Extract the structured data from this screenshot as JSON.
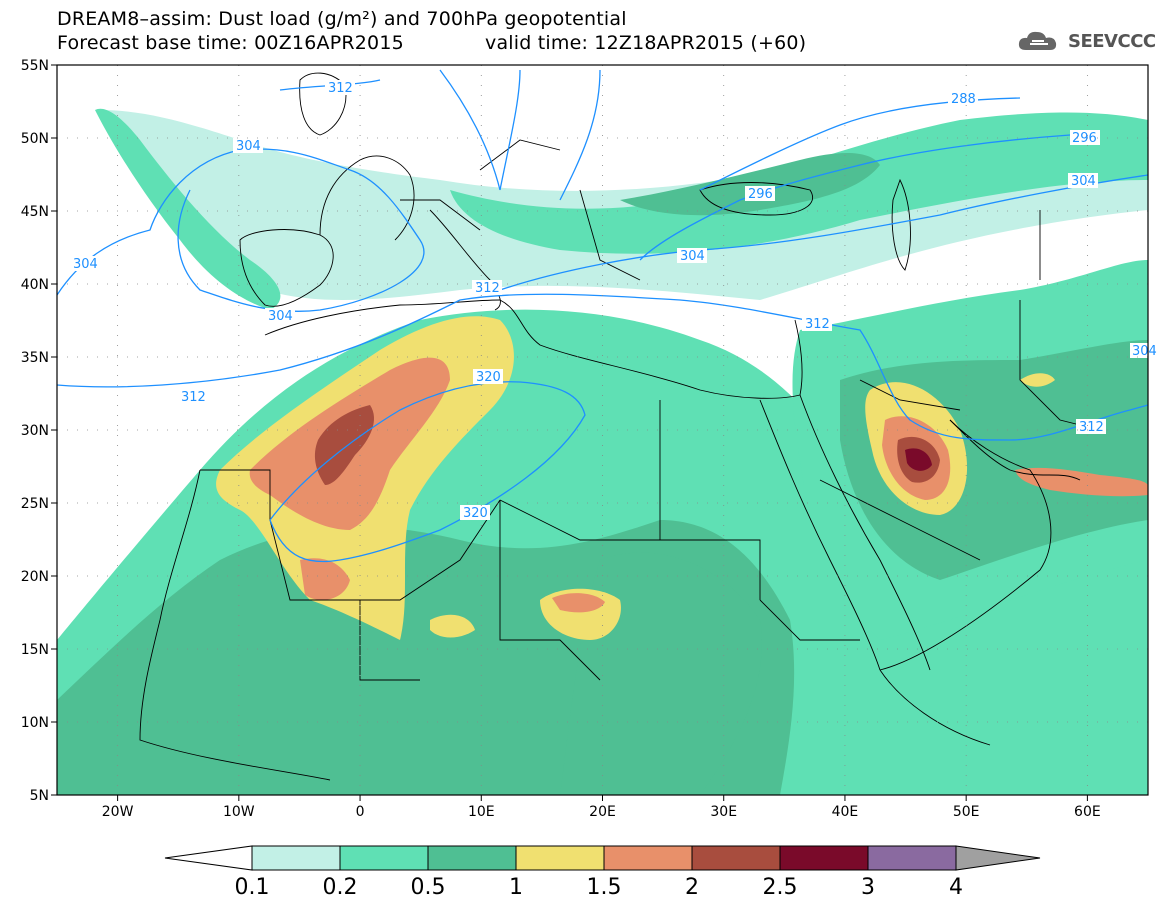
{
  "title_line1": "DREAM8–assim: Dust load (g/m²) and 700hPa geopotential",
  "title_line2": "Forecast base time: 00Z16APR2015",
  "valid_time": "valid time: 12Z18APR2015 (+60)",
  "logo_text": "SEEVCCC",
  "colors": {
    "c01": "#c2f0e6",
    "c02": "#5fe0b4",
    "c05": "#4fbf93",
    "c1": "#f0e070",
    "c15": "#e8906a",
    "c2": "#a84d3e",
    "c25": "#7a0a2a",
    "c3": "#8a6aa0",
    "c4": "#a0a0a0",
    "contour": "#1e90ff",
    "border": "#000000"
  },
  "chart_data": {
    "type": "heatmap",
    "map_extent": {
      "lon": [
        -25,
        65
      ],
      "lat": [
        5,
        55
      ]
    },
    "x_ticks": [
      "20W",
      "10W",
      "0",
      "10E",
      "20E",
      "30E",
      "40E",
      "50E",
      "60E"
    ],
    "x_tick_values": [
      -20,
      -10,
      0,
      10,
      20,
      30,
      40,
      50,
      60
    ],
    "y_ticks": [
      "55N",
      "50N",
      "45N",
      "40N",
      "35N",
      "30N",
      "25N",
      "20N",
      "15N",
      "10N",
      "5N"
    ],
    "y_tick_values": [
      55,
      50,
      45,
      40,
      35,
      30,
      25,
      20,
      15,
      10,
      5
    ],
    "colorbar_levels": [
      "0.1",
      "0.2",
      "0.5",
      "1",
      "1.5",
      "2",
      "2.5",
      "3",
      "4"
    ],
    "contour_labels": [
      "312",
      "288",
      "296",
      "304",
      "304",
      "304",
      "304",
      "304",
      "312",
      "312",
      "320",
      "320",
      "312",
      "312",
      "296",
      "304"
    ],
    "grid": true
  }
}
